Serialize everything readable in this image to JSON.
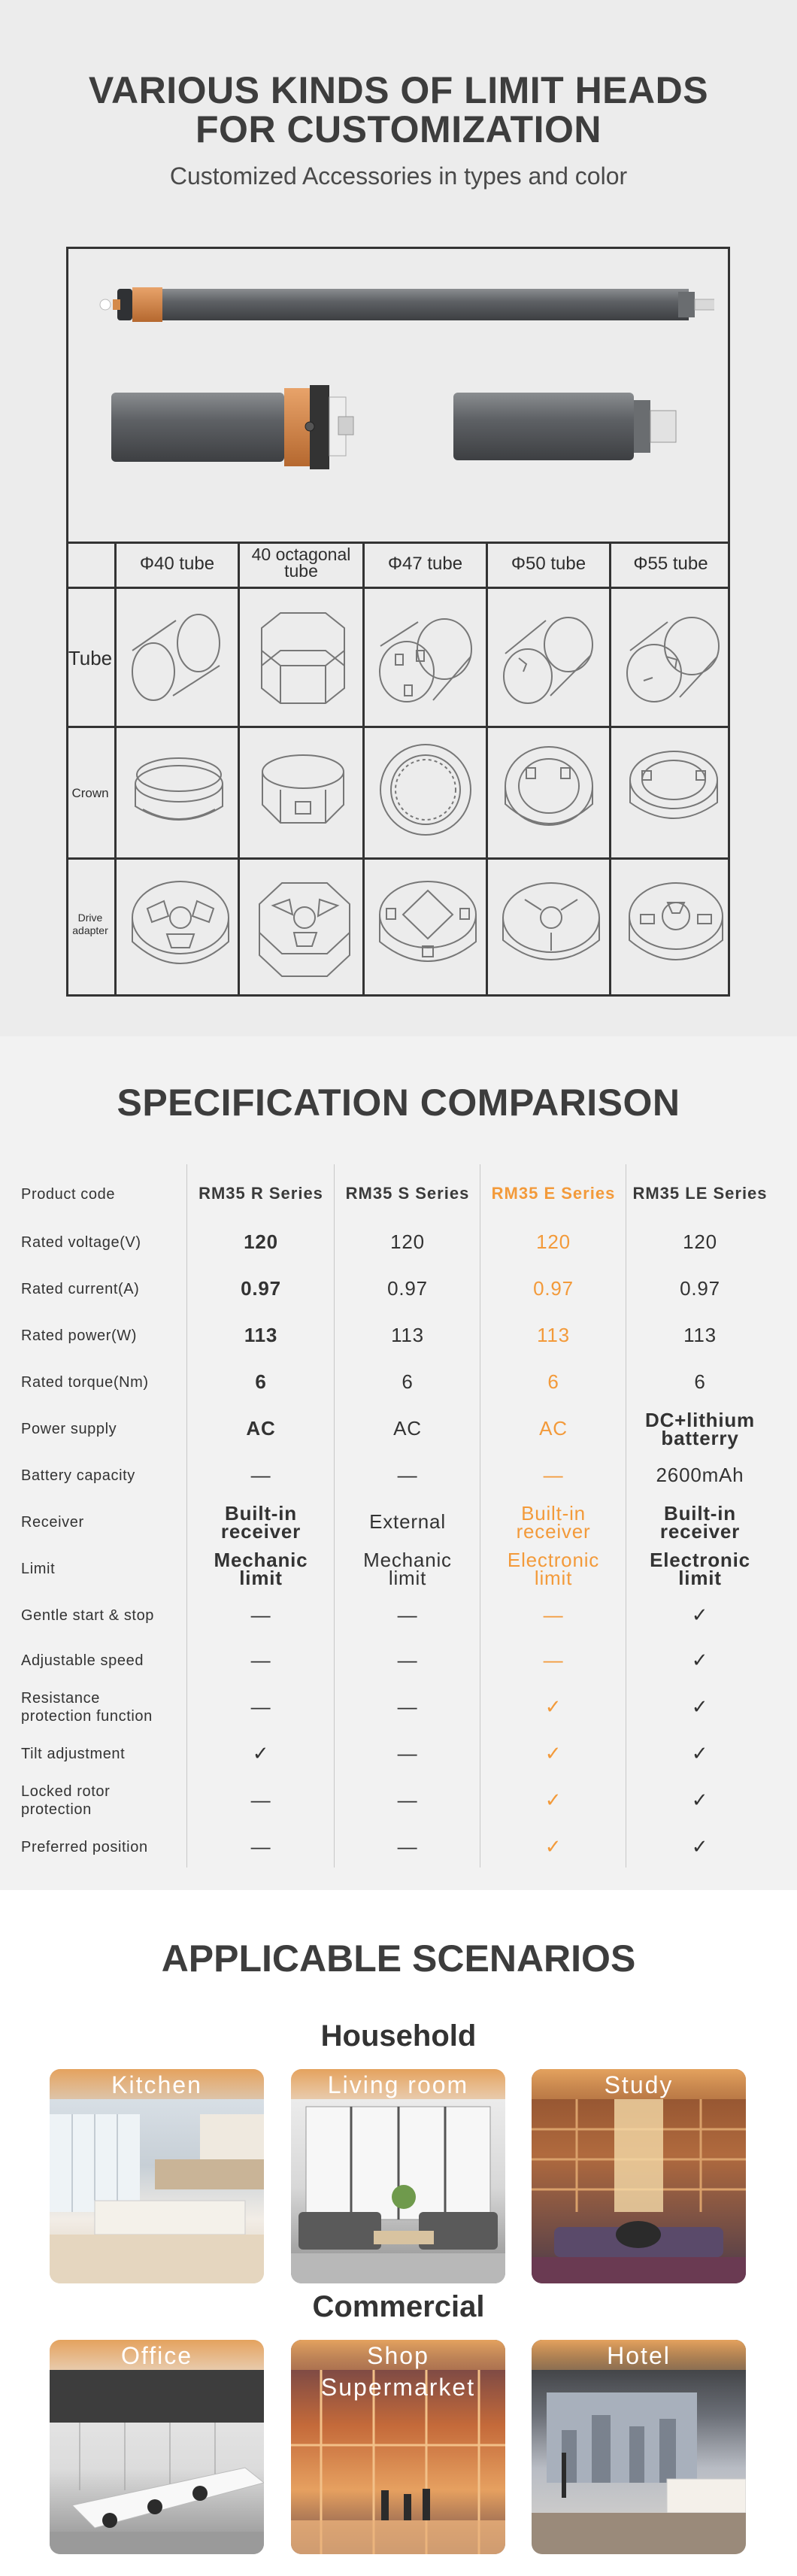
{
  "customization": {
    "title_line1": "VARIOUS KINDS OF LIMIT HEADS",
    "title_line2": "FOR CUSTOMIZATION",
    "subtitle": "Customized Accessories in types and color",
    "columns": [
      "Φ40 tube",
      "40 octagonal tube",
      "Φ47 tube",
      "Φ50 tube",
      "Φ55 tube"
    ],
    "column_40oct_line1": "40 octagonal",
    "column_40oct_line2": "tube",
    "rows": [
      "Tube",
      "Crown",
      "Drive adapter"
    ],
    "row_drive_line1": "Drive",
    "row_drive_line2": "adapter"
  },
  "spec": {
    "title": "SPECIFICATION COMPARISON",
    "product_code_label": "Product code",
    "series": [
      "RM35 R Series",
      "RM35 S Series",
      "RM35 E Series",
      "RM35 LE Series"
    ],
    "highlight_color": "#f39a3a",
    "rows": [
      {
        "label": "Rated voltage(V)",
        "values": [
          "120",
          "120",
          "120",
          "120"
        ]
      },
      {
        "label": "Rated current(A)",
        "values": [
          "0.97",
          "0.97",
          "0.97",
          "0.97"
        ]
      },
      {
        "label": "Rated power(W)",
        "values": [
          "113",
          "113",
          "113",
          "113"
        ]
      },
      {
        "label": "Rated torque(Nm)",
        "values": [
          "6",
          "6",
          "6",
          "6"
        ]
      },
      {
        "label": "Power supply",
        "values": [
          "AC",
          "AC",
          "AC",
          "DC+lithium batterry"
        ]
      },
      {
        "label": "Battery capacity",
        "values": [
          "—",
          "—",
          "—",
          "2600mAh"
        ]
      },
      {
        "label": "Receiver",
        "values": [
          "Built-in receiver",
          "External",
          "Built-in receiver",
          "Built-in receiver"
        ]
      },
      {
        "label": "Limit",
        "values": [
          "Mechanic limit",
          "Mechanic limit",
          "Electronic limit",
          "Electronic limit"
        ]
      },
      {
        "label": "Gentle start & stop",
        "values": [
          "—",
          "—",
          "—",
          "✓"
        ]
      },
      {
        "label": "Adjustable speed",
        "values": [
          "—",
          "—",
          "—",
          "✓"
        ]
      },
      {
        "label": "Resistance protection function",
        "values": [
          "—",
          "—",
          "✓",
          "✓"
        ]
      },
      {
        "label": "Tilt adjustment",
        "values": [
          "✓",
          "—",
          "✓",
          "✓"
        ]
      },
      {
        "label": "Locked rotor protection",
        "values": [
          "—",
          "—",
          "✓",
          "✓"
        ]
      },
      {
        "label": "Preferred position",
        "values": [
          "—",
          "—",
          "✓",
          "✓"
        ]
      }
    ],
    "labels_split": {
      "resistance_line1": "Resistance",
      "resistance_line2": "protection function",
      "locked_line1": "Locked rotor",
      "locked_line2": "protection",
      "dc_line1": "DC+lithium",
      "dc_line2": "batterry",
      "builtin_line1": "Built-in",
      "builtin_line2": "receiver",
      "mech_line1": "Mechanic",
      "mech_line2": "limit",
      "elec_line1": "Electronic",
      "elec_line2": "limit"
    }
  },
  "scenarios": {
    "title": "APPLICABLE SCENARIOS",
    "household_label": "Household",
    "commercial_label": "Commercial",
    "household": [
      "Kitchen",
      "Living room",
      "Study"
    ],
    "commercial": [
      "Office",
      "Shop Supermarket",
      "Hotel"
    ]
  }
}
